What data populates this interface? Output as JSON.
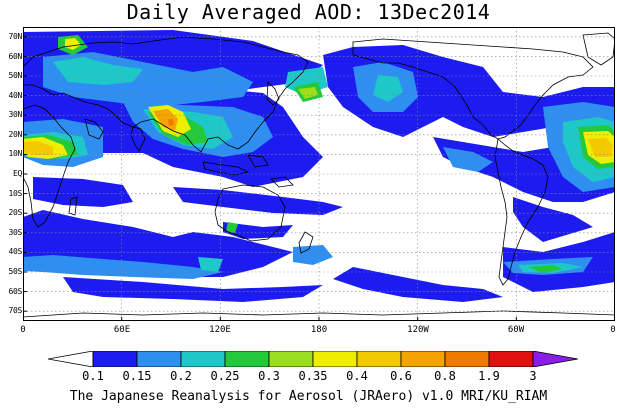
{
  "title": "Daily Averaged AOD: 13Dec2014",
  "map": {
    "projection": "cylindrical equidistant",
    "lon_range": [
      0,
      360
    ],
    "lat_range": [
      -75,
      75
    ],
    "grid_lines": "dotted",
    "field": "aerosol optical depth"
  },
  "lat_labels": [
    "70N",
    "60N",
    "50N",
    "40N",
    "30N",
    "20N",
    "10N",
    "EQ",
    "10S",
    "20S",
    "30S",
    "40S",
    "50S",
    "60S",
    "70S"
  ],
  "lon_labels": [
    "0",
    "60E",
    "120E",
    "180",
    "120W",
    "60W",
    "0"
  ],
  "colorbar": {
    "levels": [
      "0.1",
      "0.15",
      "0.2",
      "0.25",
      "0.3",
      "0.35",
      "0.4",
      "0.6",
      "0.8",
      "1.9",
      "3"
    ],
    "colors": [
      "#ffffff",
      "#1c1cf0",
      "#2e8ff0",
      "#1ec8c8",
      "#22c93a",
      "#9bde1e",
      "#eeee00",
      "#f4c900",
      "#f4a400",
      "#f07a00",
      "#e01010",
      "#8a1ee8"
    ]
  },
  "footer": "The Japanese Reanalysis for Aerosol (JRAero) v1.0 MRI/KU_RIAM"
}
